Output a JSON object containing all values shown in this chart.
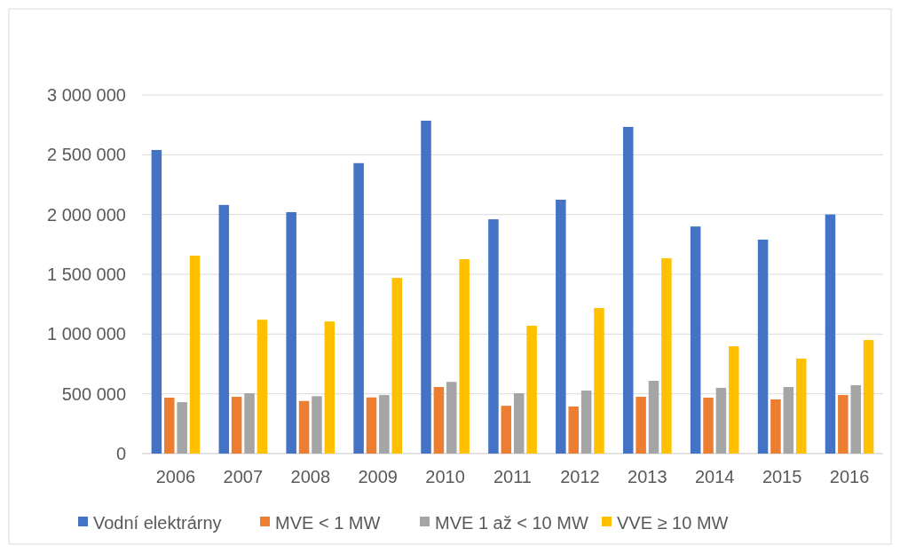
{
  "chart_data": {
    "type": "bar",
    "categories": [
      "2006",
      "2007",
      "2008",
      "2009",
      "2010",
      "2011",
      "2012",
      "2013",
      "2014",
      "2015",
      "2016"
    ],
    "series": [
      {
        "name": "Vodní elektrárny",
        "color": "#4472c4",
        "values": [
          2540000,
          2080000,
          2020000,
          2430000,
          2785000,
          1960000,
          2124000,
          2733000,
          1900000,
          1790000,
          2000000
        ]
      },
      {
        "name": "MVE < 1 MW",
        "color": "#ed7d31",
        "values": [
          468000,
          475000,
          440000,
          470000,
          557000,
          400000,
          394000,
          475000,
          468000,
          453000,
          490000
        ]
      },
      {
        "name": "MVE 1 až < 10 MW",
        "color": "#a5a5a5",
        "values": [
          430000,
          505000,
          480000,
          490000,
          600000,
          505000,
          527000,
          609000,
          550000,
          557000,
          572000
        ]
      },
      {
        "name": "VVE ≥ 10 MW",
        "color": "#ffc000",
        "values": [
          1656000,
          1120000,
          1105000,
          1470000,
          1626000,
          1070000,
          1218000,
          1634000,
          898000,
          795000,
          950000
        ]
      }
    ],
    "ylim": [
      0,
      3000000
    ],
    "yticks": [
      {
        "value": 0,
        "label": "0"
      },
      {
        "value": 500000,
        "label": "500 000"
      },
      {
        "value": 1000000,
        "label": "1 000 000"
      },
      {
        "value": 1500000,
        "label": "1 500 000"
      },
      {
        "value": 2000000,
        "label": "2 000 000"
      },
      {
        "value": 2500000,
        "label": "2 500 000"
      },
      {
        "value": 3000000,
        "label": "3 000 000"
      }
    ],
    "grid": "y",
    "legend": "bottom"
  }
}
